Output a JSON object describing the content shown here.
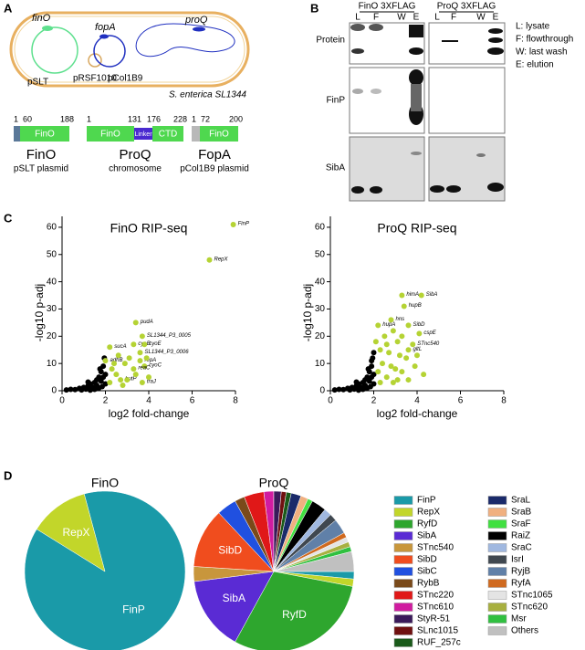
{
  "panel_labels": [
    "A",
    "B",
    "C",
    "D"
  ],
  "panel_a": {
    "genes": [
      "finO",
      "fopA",
      "proQ"
    ],
    "replicons": [
      "pSLT",
      "pRSF1010",
      "pCol1B9"
    ],
    "organism": "S. enterica SL1344",
    "proteins": [
      {
        "name": "FinO",
        "source": "pSLT plasmid",
        "positions": [
          1,
          60,
          188
        ],
        "domains": [
          "FinO"
        ]
      },
      {
        "name": "ProQ",
        "source": "chromosome",
        "positions": [
          1,
          131,
          176,
          228
        ],
        "domains": [
          "FinO",
          "Linker",
          "CTD"
        ]
      },
      {
        "name": "FopA",
        "source": "pCol1B9 plasmid",
        "positions": [
          1,
          72,
          200
        ],
        "domains": [
          "FinO"
        ]
      }
    ]
  },
  "panel_b": {
    "blots": [
      "FinO 3XFLAG",
      "ProQ 3XFLAG"
    ],
    "lanes": [
      "L",
      "F",
      "W",
      "E"
    ],
    "rows": [
      "Protein",
      "FinP",
      "SibA"
    ],
    "key": [
      "L: lysate",
      "F: flowthrough",
      "W: last wash",
      "E: elution"
    ]
  },
  "chart_data": [
    {
      "type": "scatter",
      "title": "FinO RIP-seq",
      "x_label": "log2 fold-change",
      "y_label": "-log10 p-adj",
      "xlim": [
        0,
        8
      ],
      "xticks": [
        0,
        2,
        4,
        6,
        8
      ],
      "ylim": [
        0,
        64
      ],
      "yticks": [
        0,
        10,
        20,
        30,
        40,
        50,
        60
      ],
      "series": [
        {
          "color": "#000000",
          "x": [
            0.2,
            0.4,
            0.6,
            0.8,
            1.0,
            1.1,
            1.2,
            1.3,
            1.4,
            1.5,
            1.6,
            1.6,
            1.7,
            1.8,
            1.8,
            1.9,
            1.9,
            2.0,
            1.95,
            1.7,
            1.5,
            0.9,
            1.3,
            1.85,
            2.0,
            1.2,
            1.75
          ],
          "values": [
            0.3,
            0.5,
            0.4,
            0.9,
            1.2,
            0.6,
            1.8,
            2.5,
            1.2,
            3,
            2,
            4,
            5,
            3.5,
            7,
            5,
            9,
            6,
            12,
            1,
            0.5,
            0.3,
            0.2,
            1.5,
            2.5,
            3.2,
            8
          ]
        },
        {
          "color": "#b5d334",
          "x": [
            7.9,
            6.8,
            3.4,
            3.7,
            3.3,
            3.8,
            2.2,
            3.6,
            3.6,
            3.8,
            3.3,
            2.0,
            2.7,
            3.7,
            2.3,
            2.5,
            2.9,
            3.1,
            2.6,
            3.0,
            2.2,
            3.4,
            2.8,
            4.0,
            3.9,
            2.4
          ],
          "values": [
            61,
            48,
            25,
            20,
            17,
            17,
            16,
            14,
            11,
            9,
            8,
            11,
            4,
            3,
            8,
            6,
            10,
            12,
            13,
            4,
            3,
            6,
            2,
            5,
            12,
            10
          ],
          "point_labels": [
            "FinP",
            "RepX",
            "pudA",
            "SL1344_P3_0005",
            "cyoB",
            "cyoE",
            "sucA",
            "SL1344_P3_0006",
            "repA",
            "cyoC",
            "reaC",
            "adhB",
            "butP",
            "fraJ",
            null,
            null,
            null,
            null,
            null,
            null,
            null,
            null,
            null,
            null,
            null,
            null
          ]
        }
      ]
    },
    {
      "type": "scatter",
      "title": "ProQ RIP-seq",
      "x_label": "log2 fold-change",
      "y_label": "-log10 p-adj",
      "xlim": [
        0,
        8
      ],
      "xticks": [
        0,
        2,
        4,
        6,
        8
      ],
      "ylim": [
        0,
        64
      ],
      "yticks": [
        0,
        10,
        20,
        30,
        40,
        50,
        60
      ],
      "series": [
        {
          "color": "#000000",
          "x": [
            0.2,
            0.4,
            0.6,
            0.8,
            1.0,
            1.1,
            1.2,
            1.3,
            1.4,
            1.5,
            1.6,
            1.6,
            1.7,
            1.8,
            1.8,
            1.9,
            1.9,
            2.0,
            1.95,
            1.7,
            1.5,
            0.9,
            1.3,
            1.85,
            2.0,
            1.2,
            1.75,
            2.0,
            1.9
          ],
          "values": [
            0.3,
            0.5,
            0.4,
            0.9,
            1.2,
            0.6,
            1.8,
            2.5,
            1.2,
            3,
            2,
            4,
            5,
            3.5,
            7,
            5,
            9,
            6,
            12,
            1,
            0.5,
            0.3,
            0.2,
            1.5,
            2.5,
            3.2,
            8,
            14,
            11
          ]
        },
        {
          "color": "#b5d334",
          "x": [
            4.2,
            3.3,
            3.4,
            2.8,
            2.2,
            3.6,
            4.1,
            3.8,
            3.6,
            2.5,
            2.9,
            3.1,
            2.3,
            2.7,
            3.2,
            3.5,
            2.4,
            2.8,
            3.0,
            3.3,
            3.9,
            4.3,
            2.2,
            2.6,
            3.1,
            3.6,
            2.3,
            2.9,
            4.0,
            2.1,
            2.6,
            3.3
          ],
          "values": [
            35,
            35,
            31,
            26,
            24,
            24,
            21,
            17,
            15,
            20,
            22,
            18,
            15,
            14,
            13,
            12,
            10,
            9,
            8,
            7,
            9,
            6,
            7,
            5,
            4,
            4,
            3,
            3,
            13,
            18,
            17,
            20
          ],
          "point_labels": [
            "SibA",
            "himA",
            "hupB",
            "hns",
            "hupA",
            "SibD",
            "cspE",
            "STnc540",
            "gltL",
            null,
            null,
            null,
            null,
            null,
            null,
            null,
            null,
            null,
            null,
            null,
            null,
            null,
            null,
            null,
            null,
            null,
            null,
            null,
            null,
            null,
            null,
            null
          ]
        }
      ]
    },
    {
      "type": "pie",
      "title": "FinO",
      "categories": [
        "FinP",
        "RepX"
      ],
      "values": [
        88,
        12
      ],
      "colors": [
        "#1a9aa8",
        "#c2d62a"
      ],
      "labeled": [
        true,
        true
      ]
    },
    {
      "type": "pie",
      "title": "ProQ",
      "legend": "right",
      "categories": [
        "FinP",
        "RepX",
        "RyfD",
        "SibA",
        "STnc540",
        "SibD",
        "SibC",
        "RybB",
        "STnc220",
        "STnc610",
        "StyR-51",
        "SLnc1015",
        "RUF_257c",
        "SraL",
        "SraB",
        "SraF",
        "RaiZ",
        "SraC",
        "IsrI",
        "RyjB",
        "RyfA",
        "STnc1065",
        "STnc620",
        "Msr",
        "Others"
      ],
      "values": [
        1.5,
        1.5,
        30,
        15,
        3,
        12,
        4,
        2,
        4,
        2,
        1.5,
        1,
        1,
        2,
        1.5,
        1,
        3,
        1.5,
        1.5,
        3,
        1,
        1,
        1,
        1,
        4
      ],
      "colors": [
        "#1a9aa8",
        "#c2d62a",
        "#2ea62e",
        "#5a2bd4",
        "#c8963c",
        "#f04d1e",
        "#2050e0",
        "#7a4a1a",
        "#e01818",
        "#d01ca0",
        "#3a1a5a",
        "#701010",
        "#1a5a1a",
        "#1a2a6a",
        "#f0b080",
        "#40e040",
        "#000000",
        "#a0b8e0",
        "#404850",
        "#6080a8",
        "#d06a20",
        "#e4e4e4",
        "#a8b040",
        "#30c040",
        "#c0c0c0"
      ],
      "labeled": [
        false,
        false,
        true,
        true,
        false,
        true,
        false,
        false,
        false,
        false,
        false,
        false,
        false,
        false,
        false,
        false,
        false,
        false,
        false,
        false,
        false,
        false,
        false,
        false,
        false
      ]
    }
  ]
}
